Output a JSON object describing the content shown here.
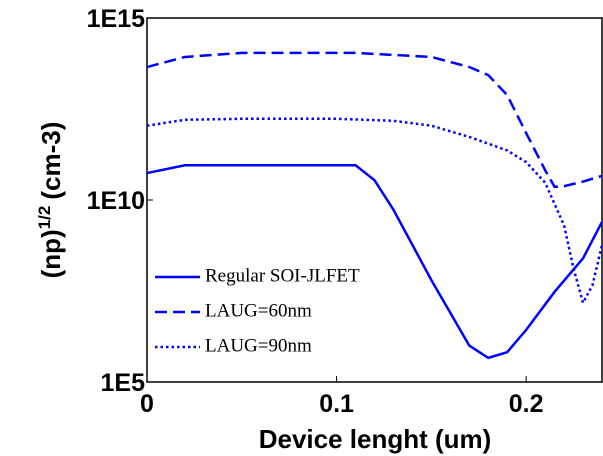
{
  "chart_data": {
    "type": "line",
    "xlabel": "Device lenght (um)",
    "ylabel": "(np)",
    "ylabel_sup": "1/2",
    "ylabel_unit": "(cm-3)",
    "xlim": [
      0,
      0.24
    ],
    "xticks": [
      0,
      0.1,
      0.2
    ],
    "ylim": [
      100000.0,
      1000000000000000.0
    ],
    "log_y": true,
    "yticks": [
      {
        "value": 100000.0,
        "label": "1E5"
      },
      {
        "value": 10000000000.0,
        "label": "1E10"
      },
      {
        "value": 1000000000000000.0,
        "label": "1E15"
      }
    ],
    "legend": "lower left",
    "series": [
      {
        "name": "Regular SOI-JLFET",
        "color": "#0000ff",
        "style": "solid",
        "x": [
          0,
          0.02,
          0.05,
          0.08,
          0.11,
          0.12,
          0.13,
          0.15,
          0.17,
          0.18,
          0.19,
          0.2,
          0.215,
          0.23,
          0.24
        ],
        "values": [
          55000000000.0,
          90000000000.0,
          90000000000.0,
          90000000000.0,
          90000000000.0,
          35000000000.0,
          5400000000.0,
          63000000.0,
          1000000.0,
          460000.0,
          660000.0,
          2700000.0,
          30000000.0,
          250000000.0,
          2500000000.0
        ]
      },
      {
        "name": "LAUG=60nm",
        "color": "#0000ff",
        "style": "dashed",
        "x": [
          0,
          0.02,
          0.05,
          0.08,
          0.11,
          0.15,
          0.17,
          0.18,
          0.19,
          0.2,
          0.21,
          0.215,
          0.22,
          0.23,
          0.24
        ],
        "values": [
          45000000000000.0,
          85000000000000.0,
          110000000000000.0,
          110000000000000.0,
          110000000000000.0,
          85000000000000.0,
          45000000000000.0,
          27000000000000.0,
          7600000000000.0,
          690000000000.0,
          66000000000.0,
          23000000000.0,
          24000000000.0,
          32000000000.0,
          46000000000.0
        ]
      },
      {
        "name": "LAUG=90nm",
        "color": "#0000ff",
        "style": "dotted",
        "x": [
          0,
          0.02,
          0.05,
          0.08,
          0.1,
          0.13,
          0.15,
          0.17,
          0.19,
          0.2,
          0.21,
          0.22,
          0.225,
          0.23,
          0.235,
          0.24
        ],
        "values": [
          1100000000000.0,
          1600000000000.0,
          1700000000000.0,
          1700000000000.0,
          1700000000000.0,
          1500000000000.0,
          1100000000000.0,
          540000000000.0,
          230000000000.0,
          110000000000.0,
          30000000000.0,
          2000000000.0,
          130000000.0,
          15000000.0,
          46000000.0,
          580000000.0
        ]
      }
    ]
  }
}
